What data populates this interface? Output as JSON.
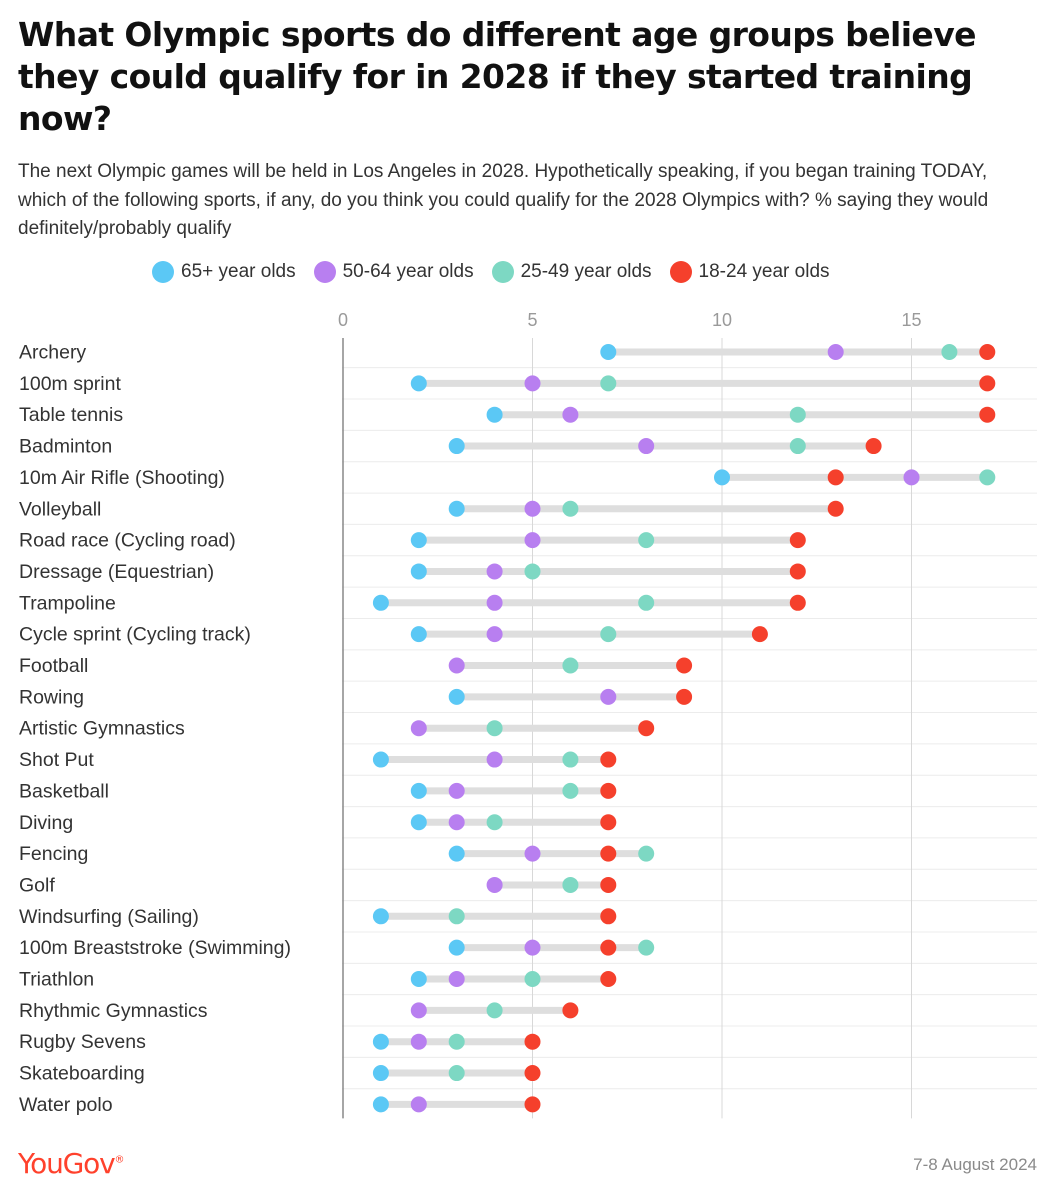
{
  "header": {
    "title": "What Olympic sports do different age groups believe they could qualify for in 2028 if they started training now?",
    "subtitle": "The next Olympic games will be held in Los Angeles in 2028. Hypothetically speaking, if you began training TODAY, which of the following sports, if any, do you think you could qualify for the 2028 Olympics with? % saying they would definitely/probably qualify"
  },
  "footer": {
    "logo": "YouGov",
    "date": "7-8 August 2024"
  },
  "chart_data": {
    "type": "dot-range",
    "xlim": [
      0,
      18
    ],
    "xticks": [
      0,
      5,
      10,
      15
    ],
    "grid": true,
    "legend_position": "top",
    "series": [
      {
        "name": "65+ year olds",
        "color": "#5bc8f5",
        "values": [
          7,
          2,
          4,
          3,
          10,
          3,
          2,
          2,
          1,
          2,
          null,
          3,
          null,
          1,
          2,
          2,
          3,
          null,
          1,
          3,
          2,
          null,
          1,
          1,
          1
        ]
      },
      {
        "name": "50-64 year olds",
        "color": "#b87ff0",
        "values": [
          13,
          5,
          6,
          8,
          15,
          5,
          5,
          4,
          4,
          4,
          3,
          7,
          2,
          4,
          3,
          3,
          5,
          4,
          null,
          5,
          3,
          2,
          2,
          null,
          2
        ]
      },
      {
        "name": "25-49 year olds",
        "color": "#7dd8c3",
        "values": [
          16,
          7,
          12,
          12,
          17,
          6,
          8,
          5,
          8,
          7,
          6,
          null,
          4,
          6,
          6,
          4,
          8,
          6,
          3,
          8,
          5,
          4,
          3,
          3,
          null
        ]
      },
      {
        "name": "18-24 year olds",
        "color": "#f5402c",
        "values": [
          17,
          17,
          17,
          14,
          13,
          13,
          12,
          12,
          12,
          11,
          9,
          9,
          8,
          7,
          7,
          7,
          7,
          7,
          7,
          7,
          7,
          6,
          5,
          5,
          5
        ]
      }
    ],
    "categories": [
      "Archery",
      "100m sprint",
      "Table tennis",
      "Badminton",
      "10m Air Rifle (Shooting)",
      "Volleyball",
      "Road race (Cycling road)",
      "Dressage (Equestrian)",
      "Trampoline",
      "Cycle sprint (Cycling track)",
      "Football",
      "Rowing",
      "Artistic Gymnastics",
      "Shot Put",
      "Basketball",
      "Diving",
      "Fencing",
      "Golf",
      "Windsurfing (Sailing)",
      "100m Breaststroke (Swimming)",
      "Triathlon",
      "Rhythmic Gymnastics",
      "Rugby Sevens",
      "Skateboarding",
      "Water polo"
    ]
  }
}
